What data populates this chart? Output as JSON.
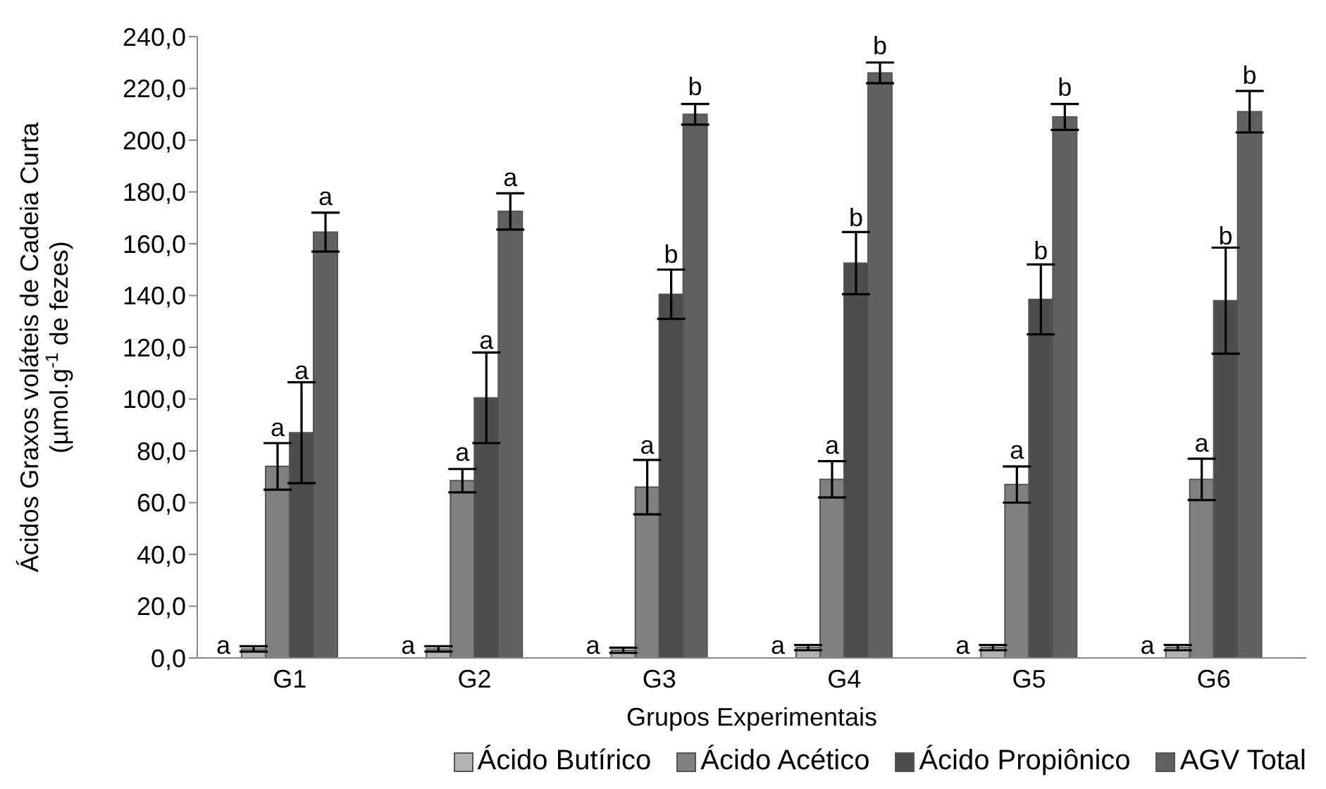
{
  "chart_data": {
    "type": "bar",
    "xlabel": "Grupos Experimentais",
    "ylabel": "Ácidos Graxos voláteis de Cadeia Curta\n(µmol.g$^{-1}$ de fezes)",
    "categories": [
      "G1",
      "G2",
      "G3",
      "G4",
      "G5",
      "G6"
    ],
    "series": [
      {
        "name": "Ácido Butírico",
        "color": "#b3b3b3",
        "values": [
          3.5,
          3.5,
          3,
          4,
          4,
          4
        ],
        "errors": [
          1,
          1,
          1,
          1,
          1,
          1
        ],
        "value_labels": [
          "a",
          "a",
          "a",
          "a",
          "a",
          "a"
        ]
      },
      {
        "name": "Ácido Acético",
        "color": "#808080",
        "values": [
          74,
          68.5,
          66,
          69,
          67,
          69
        ],
        "errors": [
          9,
          4.5,
          10.5,
          7,
          7,
          8
        ],
        "value_labels": [
          "a",
          "a",
          "a",
          "a",
          "a",
          "a"
        ]
      },
      {
        "name": "Ácido Propiônico",
        "color": "#4d4d4d",
        "values": [
          87,
          100.5,
          140.5,
          152.5,
          138.5,
          138
        ],
        "errors": [
          19.5,
          17.5,
          9.5,
          12,
          13.5,
          20.5
        ],
        "value_labels": [
          "a",
          "a",
          "b",
          "b",
          "b",
          "b"
        ]
      },
      {
        "name": "AGV Total",
        "color": "#616161",
        "values": [
          164.5,
          172.5,
          210,
          226,
          209,
          211
        ],
        "errors": [
          7.5,
          7,
          4,
          4,
          5,
          8
        ],
        "value_labels": [
          "a",
          "a",
          "b",
          "b",
          "b",
          "b"
        ]
      }
    ],
    "ylim": [
      0,
      240
    ],
    "yticks": [
      {
        "value": 0,
        "label": "0,0"
      },
      {
        "value": 20,
        "label": "20,0"
      },
      {
        "value": 40,
        "label": "40,0"
      },
      {
        "value": 60,
        "label": "60,0"
      },
      {
        "value": 80,
        "label": "80,0"
      },
      {
        "value": 100,
        "label": "100,0"
      },
      {
        "value": 120,
        "label": "120,0"
      },
      {
        "value": 140,
        "label": "140,0"
      },
      {
        "value": 160,
        "label": "160,0"
      },
      {
        "value": 180,
        "label": "180,0"
      },
      {
        "value": 200,
        "label": "200,0"
      },
      {
        "value": 220,
        "label": "220,0"
      },
      {
        "value": 240,
        "label": "240,0"
      }
    ],
    "grid": false,
    "legend": "bottom"
  }
}
